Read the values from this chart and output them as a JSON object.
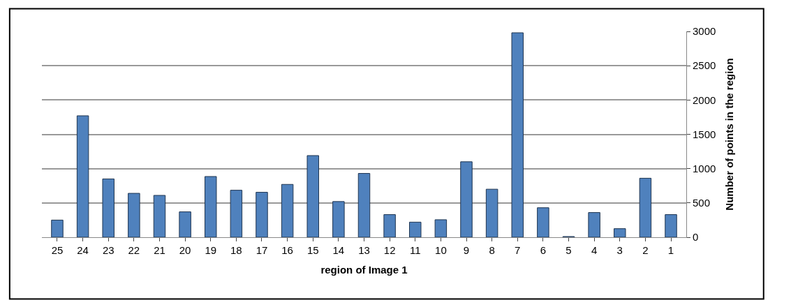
{
  "chart_data": {
    "type": "bar",
    "xlabel": "region of Image 1",
    "ylabel": "Number of points in the region",
    "categories": [
      "25",
      "24",
      "23",
      "22",
      "21",
      "20",
      "19",
      "18",
      "17",
      "16",
      "15",
      "14",
      "13",
      "12",
      "11",
      "10",
      "9",
      "8",
      "7",
      "6",
      "5",
      "4",
      "3",
      "2",
      "1"
    ],
    "values": [
      250,
      1770,
      850,
      640,
      610,
      370,
      885,
      685,
      655,
      770,
      1190,
      520,
      930,
      330,
      220,
      255,
      1100,
      700,
      2980,
      430,
      10,
      360,
      125,
      860,
      330
    ],
    "color": "#4f81bd",
    "ylim": [
      0,
      3000
    ],
    "yticks": [
      0,
      500,
      1000,
      1500,
      2000,
      2500,
      3000
    ],
    "grid": "y"
  }
}
